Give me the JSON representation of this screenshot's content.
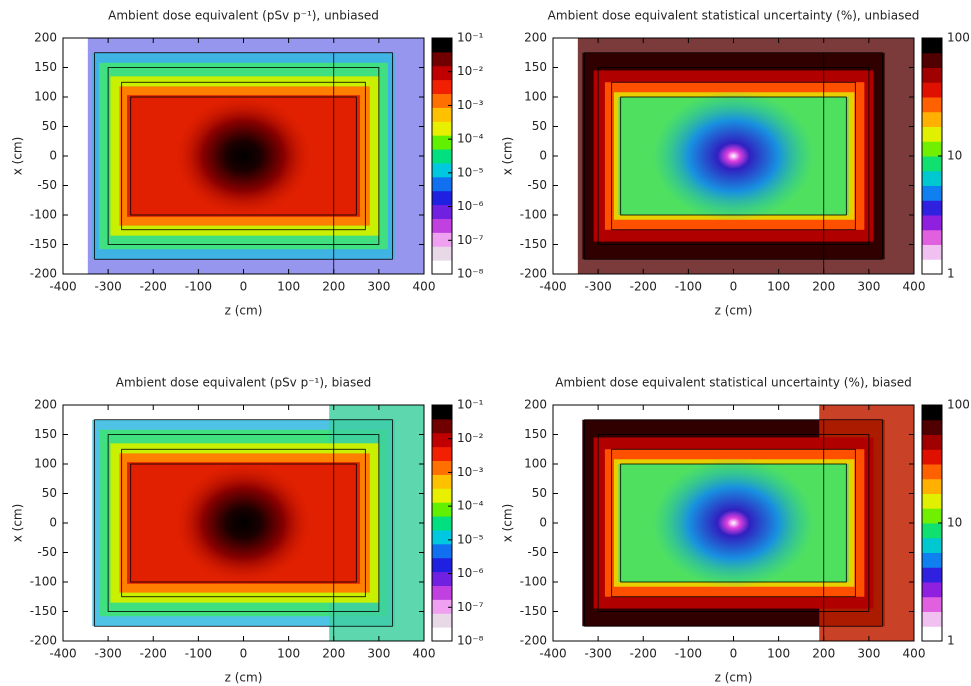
{
  "chart_data": [
    {
      "type": "heatmap",
      "title": "Ambient dose equivalent (pSv p⁻¹), unbiased",
      "xlabel": "z (cm)",
      "ylabel": "x (cm)",
      "xlim": [
        -400,
        400
      ],
      "ylim": [
        -200,
        200
      ],
      "xticks": [
        -400,
        -300,
        -200,
        -100,
        0,
        100,
        200,
        300,
        400
      ],
      "yticks": [
        -200,
        -150,
        -100,
        -50,
        0,
        50,
        100,
        150,
        200
      ],
      "colorbar": {
        "log": true,
        "lim": [
          1e-08,
          0.1
        ],
        "ticks": [
          {
            "value": 1e-08,
            "label": "10⁻⁸"
          },
          {
            "value": 1e-07,
            "label": "10⁻⁷"
          },
          {
            "value": 1e-06,
            "label": "10⁻⁶"
          },
          {
            "value": 1e-05,
            "label": "10⁻⁵"
          },
          {
            "value": 0.0001,
            "label": "10⁻⁴"
          },
          {
            "value": 0.001,
            "label": "10⁻³"
          },
          {
            "value": 0.01,
            "label": "10⁻²"
          },
          {
            "value": 0.1,
            "label": "10⁻¹"
          }
        ]
      }
    },
    {
      "type": "heatmap",
      "title": "Ambient dose equivalent statistical uncertainty (%), unbiased",
      "xlabel": "z (cm)",
      "ylabel": "x (cm)",
      "xlim": [
        -400,
        400
      ],
      "ylim": [
        -200,
        200
      ],
      "xticks": [
        -400,
        -300,
        -200,
        -100,
        0,
        100,
        200,
        300,
        400
      ],
      "yticks": [
        -200,
        -150,
        -100,
        -50,
        0,
        50,
        100,
        150,
        200
      ],
      "colorbar": {
        "log": true,
        "lim": [
          1,
          100
        ],
        "ticks": [
          1,
          10,
          100
        ]
      }
    },
    {
      "type": "heatmap",
      "title": "Ambient dose equivalent (pSv p⁻¹), biased",
      "xlabel": "z (cm)",
      "ylabel": "x (cm)",
      "xlim": [
        -400,
        400
      ],
      "ylim": [
        -200,
        200
      ],
      "xticks": [
        -400,
        -300,
        -200,
        -100,
        0,
        100,
        200,
        300,
        400
      ],
      "yticks": [
        -200,
        -150,
        -100,
        -50,
        0,
        50,
        100,
        150,
        200
      ],
      "colorbar": {
        "log": true,
        "lim": [
          1e-08,
          0.1
        ],
        "ticks": [
          {
            "value": 1e-08,
            "label": "10⁻⁸"
          },
          {
            "value": 1e-07,
            "label": "10⁻⁷"
          },
          {
            "value": 1e-06,
            "label": "10⁻⁶"
          },
          {
            "value": 1e-05,
            "label": "10⁻⁵"
          },
          {
            "value": 0.0001,
            "label": "10⁻⁴"
          },
          {
            "value": 0.001,
            "label": "10⁻³"
          },
          {
            "value": 0.01,
            "label": "10⁻²"
          },
          {
            "value": 0.1,
            "label": "10⁻¹"
          }
        ]
      }
    },
    {
      "type": "heatmap",
      "title": "Ambient dose equivalent statistical uncertainty (%), biased",
      "xlabel": "z (cm)",
      "ylabel": "x (cm)",
      "xlim": [
        -400,
        400
      ],
      "ylim": [
        -200,
        200
      ],
      "xticks": [
        -400,
        -300,
        -200,
        -100,
        0,
        100,
        200,
        300,
        400
      ],
      "yticks": [
        -200,
        -150,
        -100,
        -50,
        0,
        50,
        100,
        150,
        200
      ],
      "colorbar": {
        "log": true,
        "lim": [
          1,
          100
        ],
        "ticks": [
          1,
          10,
          100
        ]
      }
    }
  ]
}
